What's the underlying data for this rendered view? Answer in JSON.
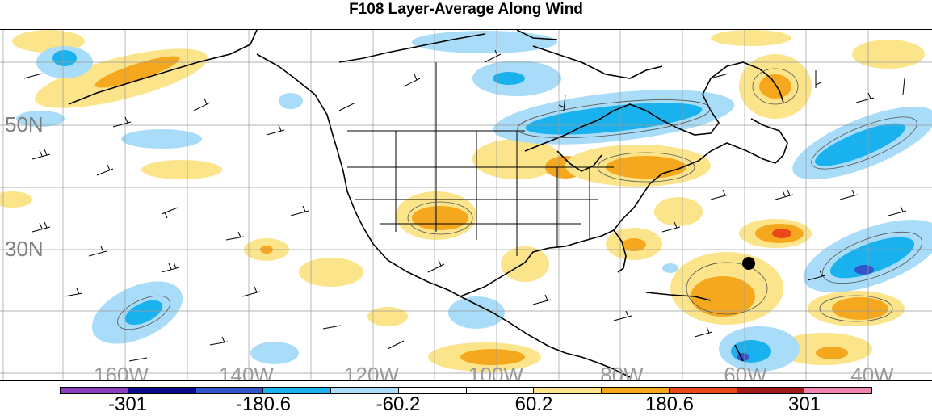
{
  "title": "F108 Layer-Average Along Wind",
  "map": {
    "lat_labels": [
      "50N",
      "30N"
    ],
    "lon_labels": [
      "160W",
      "140W",
      "120W",
      "100W",
      "80W",
      "60W",
      "40W"
    ]
  },
  "colorbar": {
    "colors": [
      "#8a3fbf",
      "#0a0a8a",
      "#3355cc",
      "#1ab2ee",
      "#a8dcf8",
      "#ffffff",
      "#ffffff",
      "#fbe48a",
      "#f5a81e",
      "#e8481a",
      "#a01a1a",
      "#ef83b0"
    ],
    "labels": [
      "-301",
      "-180.6",
      "-60.2",
      "60.2",
      "180.6",
      "301"
    ]
  }
}
